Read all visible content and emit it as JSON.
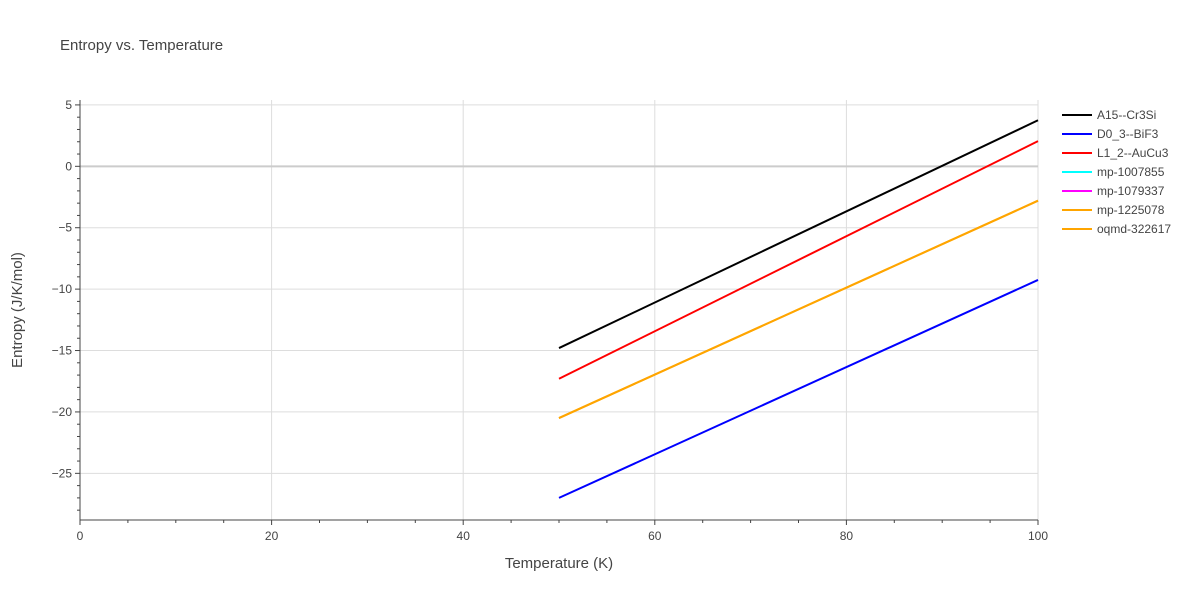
{
  "chart_data": {
    "type": "line",
    "title": "Entropy vs. Temperature",
    "xlabel": "Temperature (K)",
    "ylabel": "Entropy (J/K/mol)",
    "xlim": [
      0,
      100
    ],
    "ylim": [
      -28.8,
      5.4
    ],
    "x_ticks": [
      0,
      20,
      40,
      60,
      80,
      100
    ],
    "x_tick_labels": [
      "0",
      "20",
      "40",
      "60",
      "80",
      "100"
    ],
    "y_ticks": [
      5,
      0,
      -5,
      -10,
      -15,
      -20,
      -25
    ],
    "y_tick_labels": [
      "5",
      "0",
      "−5",
      "−10",
      "−15",
      "−20",
      "−25"
    ],
    "grid": true,
    "legend_position": "right",
    "series": [
      {
        "name": "A15--Cr3Si",
        "color": "#000000",
        "x": [
          50,
          100
        ],
        "y": [
          -14.8,
          3.75
        ]
      },
      {
        "name": "D0_3--BiF3",
        "color": "#0000ff",
        "x": [
          50,
          100
        ],
        "y": [
          -27.0,
          -9.25
        ]
      },
      {
        "name": "L1_2--AuCu3",
        "color": "#ff0000",
        "x": [
          50,
          100
        ],
        "y": [
          -17.3,
          2.05
        ]
      },
      {
        "name": "mp-1007855",
        "color": "#00ffff",
        "x": [],
        "y": []
      },
      {
        "name": "mp-1079337",
        "color": "#ff00ff",
        "x": [],
        "y": []
      },
      {
        "name": "mp-1225078",
        "color": "#ffa500",
        "x": [
          50,
          100
        ],
        "y": [
          -20.5,
          -2.8
        ]
      },
      {
        "name": "oqmd-322617",
        "color": "#ffa500",
        "x": [
          50,
          100
        ],
        "y": [
          -20.5,
          -2.8
        ]
      }
    ]
  }
}
